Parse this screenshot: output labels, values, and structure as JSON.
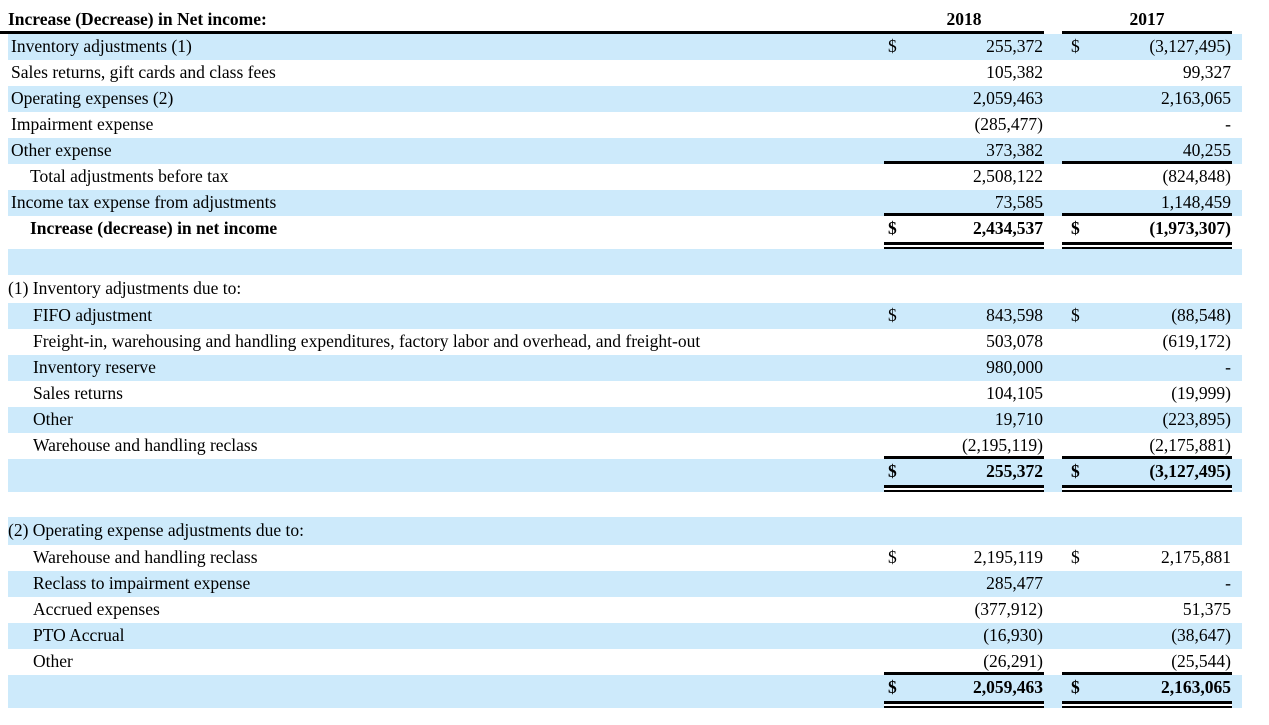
{
  "colors": {
    "stripe_blue": "#cdeafb",
    "rule_black": "#000000"
  },
  "table": {
    "title": "Increase (Decrease) in Net income:",
    "currency_symbol": "$",
    "columns": [
      "2018",
      "2017"
    ],
    "rows": [
      {
        "label": "Inventory adjustments (1)",
        "dollar": true,
        "y2018": "255,372",
        "y2017": "(3,127,495)",
        "stripe": true,
        "indent": "main",
        "rule": "none"
      },
      {
        "label": "Sales returns, gift cards and class fees",
        "y2018": "105,382",
        "y2017": "99,327",
        "stripe": false,
        "indent": "main",
        "rule": "none"
      },
      {
        "label": "Operating expenses (2)",
        "y2018": "2,059,463",
        "y2017": "2,163,065",
        "stripe": true,
        "indent": "main",
        "rule": "none"
      },
      {
        "label": "Impairment expense",
        "y2018": "(285,477)",
        "y2017": "-",
        "stripe": false,
        "indent": "main",
        "rule": "none"
      },
      {
        "label": "Other expense",
        "y2018": "373,382",
        "y2017": "40,255",
        "stripe": true,
        "indent": "main",
        "rule": "single"
      },
      {
        "label": "Total adjustments before tax",
        "y2018": "2,508,122",
        "y2017": "(824,848)",
        "stripe": false,
        "indent": "sub",
        "rule": "none"
      },
      {
        "label": "Income tax expense from adjustments",
        "y2018": "73,585",
        "y2017": "1,148,459",
        "stripe": true,
        "indent": "main",
        "rule": "single"
      },
      {
        "label": "Increase (decrease) in net income",
        "dollar": true,
        "y2018": "2,434,537",
        "y2017": "(1,973,307)",
        "stripe": false,
        "indent": "sub",
        "bold": true,
        "rule": "double",
        "total": true
      },
      {
        "label": "",
        "blank": true,
        "stripe": true,
        "indent": "main",
        "rule": "none"
      },
      {
        "label": "(1) Inventory adjustments due to:",
        "stripe": false,
        "indent": "section",
        "rule": "none",
        "section": true
      },
      {
        "label": "FIFO adjustment",
        "dollar": true,
        "y2018": "843,598",
        "y2017": "(88,548)",
        "stripe": true,
        "indent": "item",
        "rule": "none"
      },
      {
        "label": "Freight-in, warehousing and handling expenditures, factory labor and overhead, and freight-out",
        "y2018": "503,078",
        "y2017": "(619,172)",
        "stripe": false,
        "indent": "item",
        "rule": "none"
      },
      {
        "label": "Inventory reserve",
        "y2018": "980,000",
        "y2017": "-",
        "stripe": true,
        "indent": "item",
        "rule": "none"
      },
      {
        "label": "Sales returns",
        "y2018": "104,105",
        "y2017": "(19,999)",
        "stripe": false,
        "indent": "item",
        "rule": "none"
      },
      {
        "label": "Other",
        "y2018": "19,710",
        "y2017": "(223,895)",
        "stripe": true,
        "indent": "item",
        "rule": "none"
      },
      {
        "label": "Warehouse and handling reclass",
        "y2018": "(2,195,119)",
        "y2017": "(2,175,881)",
        "stripe": false,
        "indent": "item",
        "rule": "single"
      },
      {
        "label": "",
        "dollar": true,
        "y2018": "255,372",
        "y2017": "(3,127,495)",
        "stripe": true,
        "indent": "main",
        "bold": true,
        "rule": "double",
        "total": true
      },
      {
        "label": "",
        "blank": true,
        "stripe": false,
        "indent": "main",
        "rule": "none"
      },
      {
        "label": "(2) Operating expense adjustments due to:",
        "stripe": true,
        "indent": "section",
        "rule": "none",
        "section": true
      },
      {
        "label": "Warehouse and handling reclass",
        "dollar": true,
        "y2018": "2,195,119",
        "y2017": "2,175,881",
        "stripe": false,
        "indent": "item",
        "rule": "none"
      },
      {
        "label": "Reclass to impairment expense",
        "y2018": "285,477",
        "y2017": "-",
        "stripe": true,
        "indent": "item",
        "rule": "none"
      },
      {
        "label": "Accrued expenses",
        "y2018": "(377,912)",
        "y2017": "51,375",
        "stripe": false,
        "indent": "item",
        "rule": "none"
      },
      {
        "label": "PTO Accrual",
        "y2018": "(16,930)",
        "y2017": "(38,647)",
        "stripe": true,
        "indent": "item",
        "rule": "none"
      },
      {
        "label": "Other",
        "y2018": "(26,291)",
        "y2017": "(25,544)",
        "stripe": false,
        "indent": "item",
        "rule": "single"
      },
      {
        "label": "",
        "dollar": true,
        "y2018": "2,059,463",
        "y2017": "2,163,065",
        "stripe": true,
        "indent": "main",
        "bold": true,
        "rule": "double",
        "total": true
      }
    ]
  }
}
